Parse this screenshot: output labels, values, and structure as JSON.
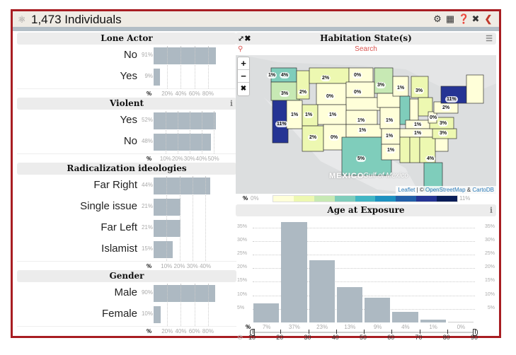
{
  "header": {
    "title": "1,473 Individuals",
    "logo_icon": "network-icon",
    "tools": [
      "gear-icon",
      "table-icon",
      "help-icon",
      "expand-icon",
      "collapse-icon"
    ]
  },
  "panels": {
    "lone_actor": {
      "title": "Lone Actor",
      "rows": [
        {
          "label": "No",
          "pct": "91%",
          "value": 91
        },
        {
          "label": "Yes",
          "pct": "9%",
          "value": 9
        }
      ],
      "axis": [
        "20%",
        "40%",
        "60%",
        "80%"
      ],
      "axis_label": "%"
    },
    "violent": {
      "title": "Violent",
      "rows": [
        {
          "label": "Yes",
          "pct": "52%",
          "value": 52
        },
        {
          "label": "No",
          "pct": "48%",
          "value": 48
        }
      ],
      "axis": [
        "10%",
        "20%",
        "30%",
        "40%",
        "50%"
      ],
      "axis_label": "%"
    },
    "ideology": {
      "title": "Radicalization ideologies",
      "rows": [
        {
          "label": "Far Right",
          "pct": "44%",
          "value": 44
        },
        {
          "label": "Single issue",
          "pct": "21%",
          "value": 21
        },
        {
          "label": "Far Left",
          "pct": "21%",
          "value": 21
        },
        {
          "label": "Islamist",
          "pct": "15%",
          "value": 15
        }
      ],
      "axis": [
        "10%",
        "20%",
        "30%",
        "40%"
      ],
      "axis_label": "%"
    },
    "gender": {
      "title": "Gender",
      "rows": [
        {
          "label": "Male",
          "pct": "90%",
          "value": 90
        },
        {
          "label": "Female",
          "pct": "10%",
          "value": 10
        }
      ],
      "axis": [
        "20%",
        "40%",
        "60%",
        "80%"
      ],
      "axis_label": "%"
    }
  },
  "map_panel": {
    "title": "Habitation State(s)",
    "search_placeholder": "Search",
    "zoom_in": "+",
    "zoom_out": "−",
    "labels": {
      "mexico": "MEXICO",
      "gulf": "Gulf of Mexico"
    },
    "attribution": {
      "leaflet": "Leaflet",
      "sep": " | © ",
      "osm": "OpenStreetMap",
      "amp": " & ",
      "carto": "CartoDB"
    },
    "legend": {
      "label": "%",
      "min": "0%",
      "max": "11%",
      "colors": [
        "#ffffd9",
        "#edf8b1",
        "#c7e9b4",
        "#7fcdbb",
        "#41b6c4",
        "#1d91c0",
        "#225ea8",
        "#253494",
        "#081d58"
      ]
    },
    "states": [
      {
        "name": "WA",
        "pct": "4%"
      },
      {
        "name": "OR",
        "pct": "3%"
      },
      {
        "name": "CA",
        "pct": "11%"
      },
      {
        "name": "ID",
        "pct": "2%"
      },
      {
        "name": "MT",
        "pct": "2%"
      },
      {
        "name": "ND",
        "pct": "0%"
      },
      {
        "name": "WY",
        "pct": "0%"
      },
      {
        "name": "SD",
        "pct": "0%"
      },
      {
        "name": "NV",
        "pct": "1%"
      },
      {
        "name": "UT",
        "pct": "1%"
      },
      {
        "name": "CO",
        "pct": "1%"
      },
      {
        "name": "AZ",
        "pct": "2%"
      },
      {
        "name": "NM",
        "pct": "0%"
      },
      {
        "name": "KS",
        "pct": "1%"
      },
      {
        "name": "OK",
        "pct": "1%"
      },
      {
        "name": "TX",
        "pct": "5%"
      },
      {
        "name": "MN",
        "pct": "3%"
      },
      {
        "name": "WI",
        "pct": "1%"
      },
      {
        "name": "MI",
        "pct": "3%"
      },
      {
        "name": "MO",
        "pct": "1%"
      },
      {
        "name": "AR",
        "pct": "1%"
      },
      {
        "name": "LA",
        "pct": "1%"
      },
      {
        "name": "KY",
        "pct": "1%"
      },
      {
        "name": "TN",
        "pct": "1%"
      },
      {
        "name": "NY",
        "pct": "11%"
      },
      {
        "name": "PA",
        "pct": "2%"
      },
      {
        "name": "WV",
        "pct": "0%"
      },
      {
        "name": "VA",
        "pct": "3%"
      },
      {
        "name": "NC",
        "pct": "3%"
      },
      {
        "name": "FL",
        "pct": "4%"
      },
      {
        "name": "HI",
        "pct": "1%"
      }
    ]
  },
  "age_panel": {
    "title": "Age at Exposure",
    "axis_label": "%"
  },
  "chart_data": {
    "type": "bar",
    "title": "Age at Exposure",
    "categories": [
      "10-20",
      "20-30",
      "30-40",
      "40-50",
      "50-60",
      "60-70",
      "70-80",
      "80-90"
    ],
    "values": [
      7,
      37,
      23,
      13,
      9,
      4,
      1,
      0
    ],
    "value_labels": [
      "7%",
      "37%",
      "23%",
      "13%",
      "9%",
      "4%",
      "1%",
      "0%"
    ],
    "x_ticks": [
      "10",
      "20",
      "30",
      "40",
      "50",
      "60",
      "70",
      "80",
      "90"
    ],
    "y_ticks": [
      "5%",
      "10%",
      "15%",
      "20%",
      "25%",
      "30%",
      "35%"
    ],
    "ylim": [
      0,
      37
    ],
    "grid": true
  }
}
